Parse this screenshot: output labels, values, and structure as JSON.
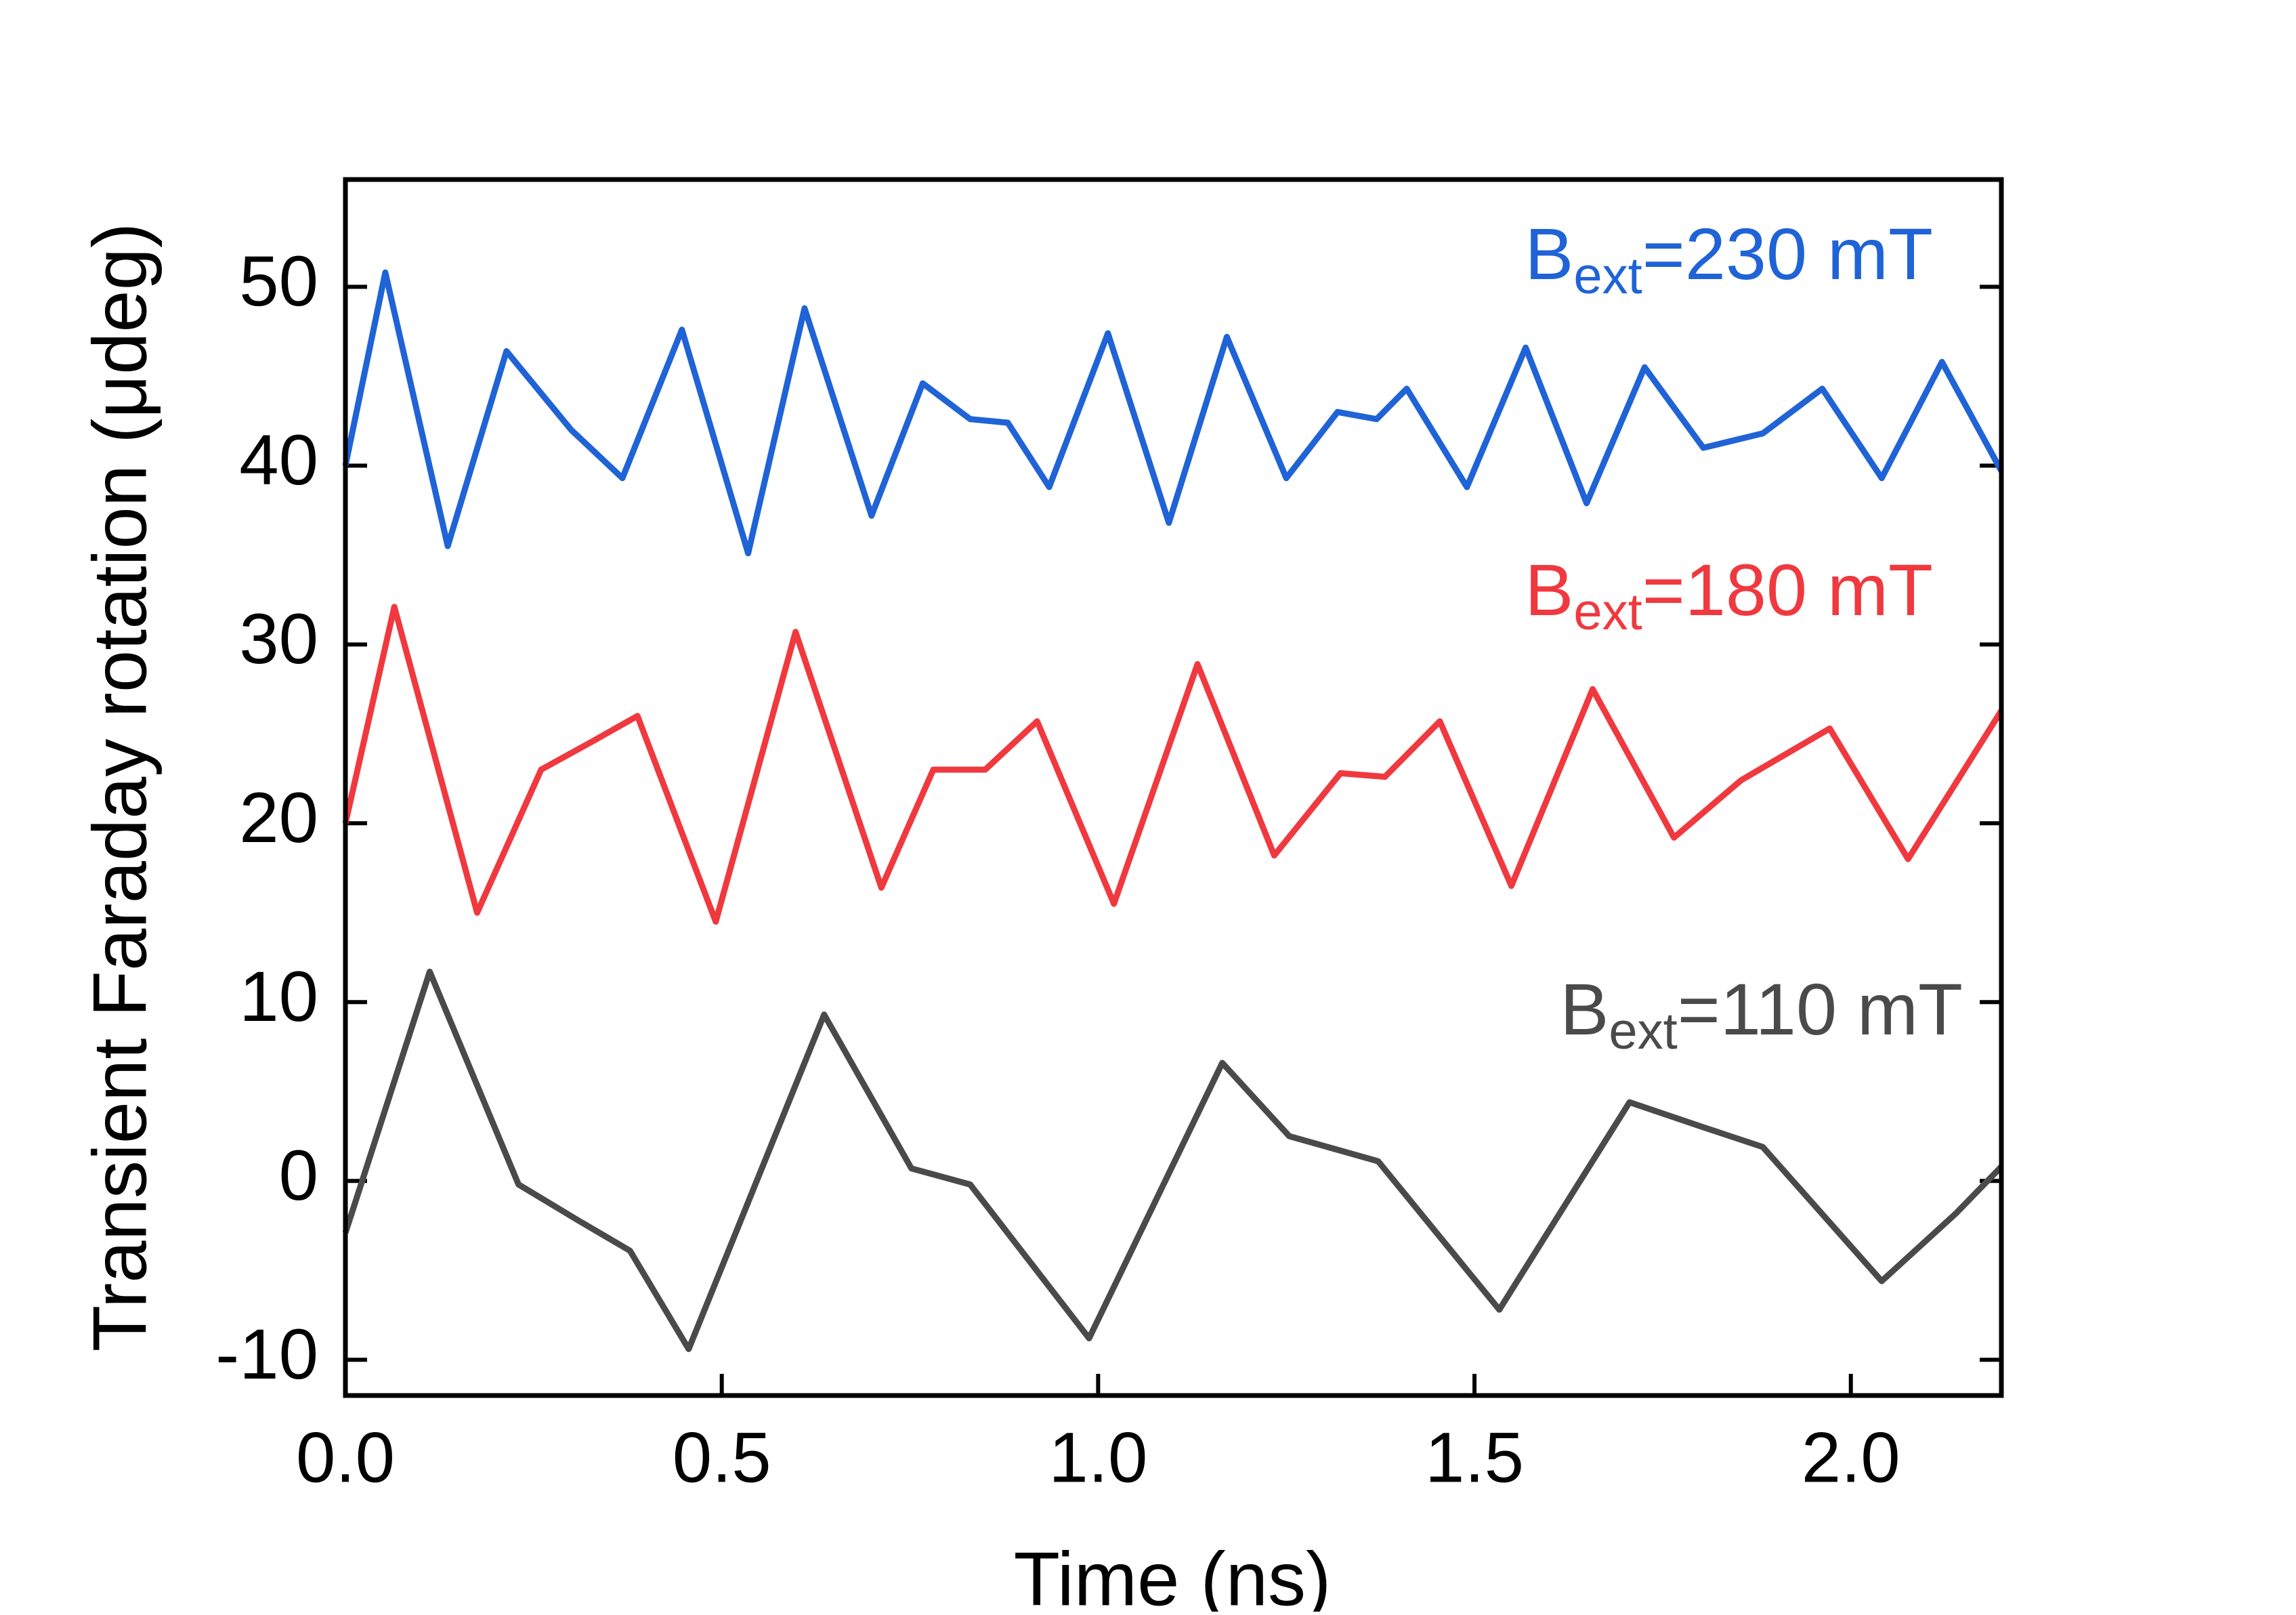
{
  "chart_data": {
    "type": "line",
    "xlabel": "Time (ns)",
    "ylabel": "Transient Faraday rotation (μdeg)",
    "xlim": [
      0,
      2.2
    ],
    "xticks": [
      {
        "value": 0,
        "label": "0.0"
      },
      {
        "value": 0.5,
        "label": "0.5"
      },
      {
        "value": 1,
        "label": "1.0"
      },
      {
        "value": 1.5,
        "label": "1.5"
      },
      {
        "value": 2,
        "label": "2.0"
      }
    ],
    "ylim": [
      -12,
      56
    ],
    "yticks": [
      -10,
      0,
      10,
      20,
      30,
      40,
      50
    ],
    "series": [
      {
        "name": "Bext=230 mT",
        "color": "#1f63d6",
        "x": [
          0,
          0.053,
          0.136,
          0.214,
          0.3,
          0.368,
          0.447,
          0.535,
          0.61,
          0.699,
          0.767,
          0.83,
          0.88,
          0.935,
          1.013,
          1.094,
          1.171,
          1.25,
          1.318,
          1.37,
          1.41,
          1.49,
          1.568,
          1.649,
          1.726,
          1.804,
          1.883,
          1.962,
          2.041,
          2.121,
          2.2
        ],
        "values": [
          40,
          50.8,
          35.5,
          46.4,
          42,
          39.3,
          47.6,
          35.1,
          48.8,
          37.2,
          44.6,
          42.6,
          42.4,
          38.8,
          47.4,
          36.8,
          47.2,
          39.3,
          43,
          42.6,
          44.3,
          38.8,
          46.6,
          37.9,
          45.5,
          41,
          41.8,
          44.3,
          39.3,
          45.8,
          39.7
        ]
      },
      {
        "name": "Bext=180 mT",
        "color": "#f0393f",
        "x": [
          0,
          0.065,
          0.175,
          0.26,
          0.329,
          0.388,
          0.492,
          0.598,
          0.712,
          0.781,
          0.85,
          0.919,
          1.021,
          1.132,
          1.234,
          1.322,
          1.381,
          1.454,
          1.549,
          1.657,
          1.765,
          1.854,
          1.972,
          2.076,
          2.2
        ],
        "values": [
          20,
          32.1,
          15,
          23,
          24.6,
          26,
          14.5,
          30.7,
          16.4,
          23,
          23,
          25.7,
          15.5,
          28.9,
          18.2,
          22.8,
          22.6,
          25.7,
          16.5,
          27.5,
          19.2,
          22.4,
          25.3,
          18,
          26.3
        ]
      },
      {
        "name": "Bext=110 mT",
        "color": "#4a4a4a",
        "x": [
          0,
          0.112,
          0.23,
          0.309,
          0.378,
          0.456,
          0.636,
          0.752,
          0.83,
          0.988,
          1.165,
          1.254,
          1.372,
          1.533,
          1.706,
          1.804,
          1.883,
          2.041,
          2.14,
          2.2
        ],
        "values": [
          -2.9,
          11.7,
          -0.2,
          -2.2,
          -3.9,
          -9.4,
          9.3,
          0.7,
          -0.2,
          -8.8,
          6.6,
          2.5,
          1.1,
          -7.2,
          4.4,
          3,
          1.9,
          -5.6,
          -1.8,
          0.8
        ]
      }
    ]
  }
}
